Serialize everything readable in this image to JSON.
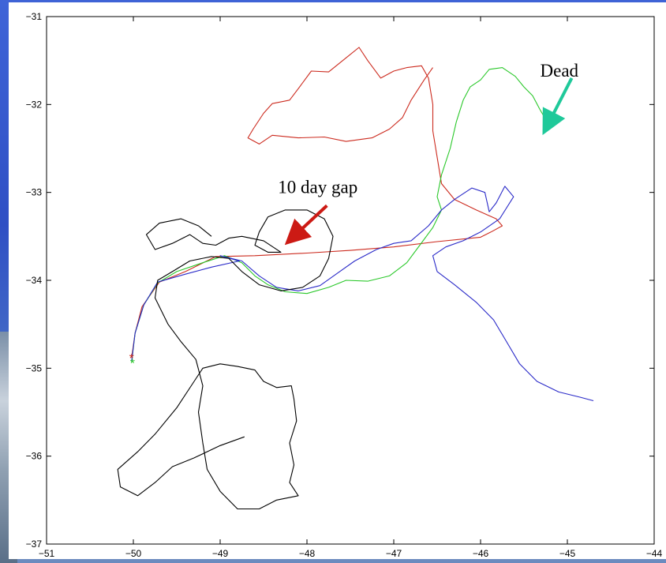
{
  "chart_data": {
    "type": "line",
    "title": "",
    "xlabel": "",
    "ylabel": "",
    "xlim": [
      -51,
      -44
    ],
    "ylim": [
      -37,
      -31
    ],
    "xticks": [
      -51,
      -50,
      -49,
      -48,
      -47,
      -46,
      -45,
      -44
    ],
    "yticks": [
      -31,
      -32,
      -33,
      -34,
      -35,
      -36,
      -37
    ],
    "grid": false,
    "series": [
      {
        "color": "#cc2a1e",
        "points": [
          [
            -50.02,
            -34.88
          ],
          [
            -49.98,
            -34.6
          ],
          [
            -49.9,
            -34.3
          ],
          [
            -49.7,
            -34.02
          ],
          [
            -49.4,
            -33.9
          ],
          [
            -49.05,
            -33.73
          ],
          [
            -48.6,
            -33.72
          ],
          [
            -48.0,
            -33.69
          ],
          [
            -47.5,
            -33.66
          ],
          [
            -47.0,
            -33.62
          ],
          [
            -46.5,
            -33.56
          ],
          [
            -46.0,
            -33.51
          ],
          [
            -45.88,
            -33.45
          ],
          [
            -45.75,
            -33.38
          ],
          [
            -45.82,
            -33.3
          ],
          [
            -46.05,
            -33.2
          ],
          [
            -46.3,
            -33.08
          ],
          [
            -46.45,
            -32.9
          ],
          [
            -46.5,
            -32.6
          ],
          [
            -46.55,
            -32.3
          ],
          [
            -46.55,
            -32.0
          ],
          [
            -46.6,
            -31.7
          ],
          [
            -46.68,
            -31.56
          ],
          [
            -46.85,
            -31.58
          ],
          [
            -47.0,
            -31.62
          ],
          [
            -47.15,
            -31.7
          ],
          [
            -47.3,
            -31.5
          ],
          [
            -47.4,
            -31.35
          ],
          [
            -47.55,
            -31.47
          ],
          [
            -47.75,
            -31.63
          ],
          [
            -47.95,
            -31.62
          ],
          [
            -48.1,
            -31.82
          ],
          [
            -48.2,
            -31.95
          ],
          [
            -48.4,
            -31.99
          ],
          [
            -48.5,
            -32.1
          ],
          [
            -48.62,
            -32.28
          ],
          [
            -48.68,
            -32.38
          ],
          [
            -48.55,
            -32.45
          ],
          [
            -48.4,
            -32.35
          ],
          [
            -48.1,
            -32.38
          ],
          [
            -47.8,
            -32.37
          ],
          [
            -47.55,
            -32.42
          ],
          [
            -47.25,
            -32.38
          ],
          [
            -47.05,
            -32.28
          ],
          [
            -46.9,
            -32.15
          ],
          [
            -46.8,
            -31.95
          ],
          [
            -46.65,
            -31.72
          ],
          [
            -46.55,
            -31.58
          ]
        ]
      },
      {
        "color": "#2ac82a",
        "points": [
          [
            -50.02,
            -34.93
          ],
          [
            -49.98,
            -34.6
          ],
          [
            -49.88,
            -34.28
          ],
          [
            -49.72,
            -34.03
          ],
          [
            -49.5,
            -33.9
          ],
          [
            -49.2,
            -33.8
          ],
          [
            -48.95,
            -33.72
          ],
          [
            -48.75,
            -33.8
          ],
          [
            -48.6,
            -33.95
          ],
          [
            -48.45,
            -34.05
          ],
          [
            -48.25,
            -34.13
          ],
          [
            -48.0,
            -34.15
          ],
          [
            -47.75,
            -34.08
          ],
          [
            -47.55,
            -34.0
          ],
          [
            -47.3,
            -34.01
          ],
          [
            -47.05,
            -33.95
          ],
          [
            -46.85,
            -33.8
          ],
          [
            -46.7,
            -33.6
          ],
          [
            -46.55,
            -33.4
          ],
          [
            -46.45,
            -33.2
          ],
          [
            -46.5,
            -33.05
          ],
          [
            -46.45,
            -32.8
          ],
          [
            -46.35,
            -32.5
          ],
          [
            -46.28,
            -32.2
          ],
          [
            -46.2,
            -31.95
          ],
          [
            -46.12,
            -31.8
          ],
          [
            -46.0,
            -31.72
          ],
          [
            -45.9,
            -31.6
          ],
          [
            -45.75,
            -31.58
          ],
          [
            -45.6,
            -31.68
          ],
          [
            -45.5,
            -31.8
          ],
          [
            -45.4,
            -31.9
          ],
          [
            -45.32,
            -32.05
          ],
          [
            -45.22,
            -32.22
          ]
        ]
      },
      {
        "color": "#2a2ac8",
        "points": [
          [
            -50.02,
            -34.92
          ],
          [
            -49.98,
            -34.6
          ],
          [
            -49.88,
            -34.28
          ],
          [
            -49.72,
            -34.02
          ],
          [
            -49.4,
            -33.93
          ],
          [
            -49.1,
            -33.85
          ],
          [
            -48.78,
            -33.78
          ],
          [
            -49.0,
            -33.72
          ],
          [
            -48.75,
            -33.78
          ],
          [
            -48.55,
            -33.95
          ],
          [
            -48.35,
            -34.08
          ],
          [
            -48.1,
            -34.12
          ],
          [
            -47.85,
            -34.06
          ],
          [
            -47.65,
            -33.92
          ],
          [
            -47.45,
            -33.78
          ],
          [
            -47.2,
            -33.65
          ],
          [
            -47.0,
            -33.58
          ],
          [
            -46.8,
            -33.55
          ],
          [
            -46.6,
            -33.38
          ],
          [
            -46.45,
            -33.2
          ],
          [
            -46.3,
            -33.08
          ],
          [
            -46.1,
            -32.95
          ],
          [
            -45.95,
            -33.0
          ],
          [
            -45.9,
            -33.22
          ],
          [
            -45.82,
            -33.12
          ],
          [
            -45.72,
            -32.93
          ],
          [
            -45.62,
            -33.05
          ],
          [
            -45.78,
            -33.3
          ],
          [
            -46.0,
            -33.45
          ],
          [
            -46.2,
            -33.55
          ],
          [
            -46.4,
            -33.62
          ],
          [
            -46.55,
            -33.72
          ],
          [
            -46.5,
            -33.9
          ],
          [
            -46.3,
            -34.05
          ],
          [
            -46.05,
            -34.25
          ],
          [
            -45.85,
            -34.45
          ],
          [
            -45.7,
            -34.7
          ],
          [
            -45.55,
            -34.95
          ],
          [
            -45.35,
            -35.15
          ],
          [
            -45.1,
            -35.27
          ],
          [
            -44.85,
            -35.33
          ],
          [
            -44.7,
            -35.37
          ]
        ]
      },
      {
        "color": "#000000",
        "points": [
          [
            -48.72,
            -35.78
          ],
          [
            -49.0,
            -35.88
          ],
          [
            -49.3,
            -36.02
          ],
          [
            -49.55,
            -36.12
          ],
          [
            -49.75,
            -36.3
          ],
          [
            -49.95,
            -36.45
          ],
          [
            -50.15,
            -36.35
          ],
          [
            -50.18,
            -36.15
          ],
          [
            -49.95,
            -35.95
          ],
          [
            -49.75,
            -35.75
          ],
          [
            -49.5,
            -35.45
          ],
          [
            -49.3,
            -35.15
          ],
          [
            -49.2,
            -35.0
          ],
          [
            -49.0,
            -34.95
          ],
          [
            -48.8,
            -34.98
          ],
          [
            -48.6,
            -35.02
          ],
          [
            -48.5,
            -35.15
          ],
          [
            -48.35,
            -35.22
          ],
          [
            -48.18,
            -35.2
          ],
          [
            -48.15,
            -35.35
          ],
          [
            -48.12,
            -35.6
          ],
          [
            -48.2,
            -35.85
          ],
          [
            -48.15,
            -36.1
          ],
          [
            -48.2,
            -36.3
          ],
          [
            -48.1,
            -36.45
          ],
          [
            -48.35,
            -36.5
          ],
          [
            -48.55,
            -36.6
          ],
          [
            -48.8,
            -36.6
          ],
          [
            -49.0,
            -36.4
          ],
          [
            -49.15,
            -36.15
          ],
          [
            -49.2,
            -35.85
          ],
          [
            -49.25,
            -35.5
          ],
          [
            -49.2,
            -35.2
          ],
          [
            -49.28,
            -34.9
          ],
          [
            -49.45,
            -34.7
          ],
          [
            -49.6,
            -34.5
          ],
          [
            -49.75,
            -34.2
          ],
          [
            -49.72,
            -34.0
          ],
          [
            -49.55,
            -33.9
          ],
          [
            -49.35,
            -33.78
          ],
          [
            -49.1,
            -33.73
          ],
          [
            -48.9,
            -33.75
          ],
          [
            -48.75,
            -33.9
          ],
          [
            -48.55,
            -34.05
          ],
          [
            -48.3,
            -34.12
          ],
          [
            -48.05,
            -34.08
          ],
          [
            -47.85,
            -33.95
          ],
          [
            -47.75,
            -33.75
          ],
          [
            -47.7,
            -33.5
          ],
          [
            -47.8,
            -33.3
          ],
          [
            -48.0,
            -33.2
          ],
          [
            -48.25,
            -33.2
          ],
          [
            -48.45,
            -33.28
          ],
          [
            -48.55,
            -33.45
          ],
          [
            -48.6,
            -33.6
          ],
          [
            -48.45,
            -33.68
          ],
          [
            -48.3,
            -33.68
          ],
          [
            -48.5,
            -33.55
          ],
          [
            -48.75,
            -33.5
          ],
          [
            -48.9,
            -33.52
          ],
          [
            -49.05,
            -33.6
          ],
          [
            -49.2,
            -33.58
          ],
          [
            -49.35,
            -33.48
          ],
          [
            -49.55,
            -33.58
          ],
          [
            -49.75,
            -33.65
          ],
          [
            -49.85,
            -33.48
          ],
          [
            -49.7,
            -33.35
          ],
          [
            -49.45,
            -33.3
          ],
          [
            -49.25,
            -33.38
          ],
          [
            -49.1,
            -33.5
          ]
        ]
      }
    ],
    "annotations": [
      {
        "text": "Dead",
        "color": "#1fc99a",
        "tail": [
          -44.95,
          -31.7
        ],
        "head": [
          -45.22,
          -32.22
        ]
      },
      {
        "text": "10 day gap",
        "color": "#cc1a14",
        "tail": [
          -47.77,
          -33.15
        ],
        "head": [
          -48.15,
          -33.5
        ]
      }
    ],
    "markers": [
      {
        "color": "#cc2a1e",
        "symbol": "*",
        "point": [
          -50.02,
          -34.88
        ]
      },
      {
        "color": "#2ac82a",
        "symbol": "*",
        "point": [
          -50.01,
          -34.94
        ]
      }
    ]
  }
}
